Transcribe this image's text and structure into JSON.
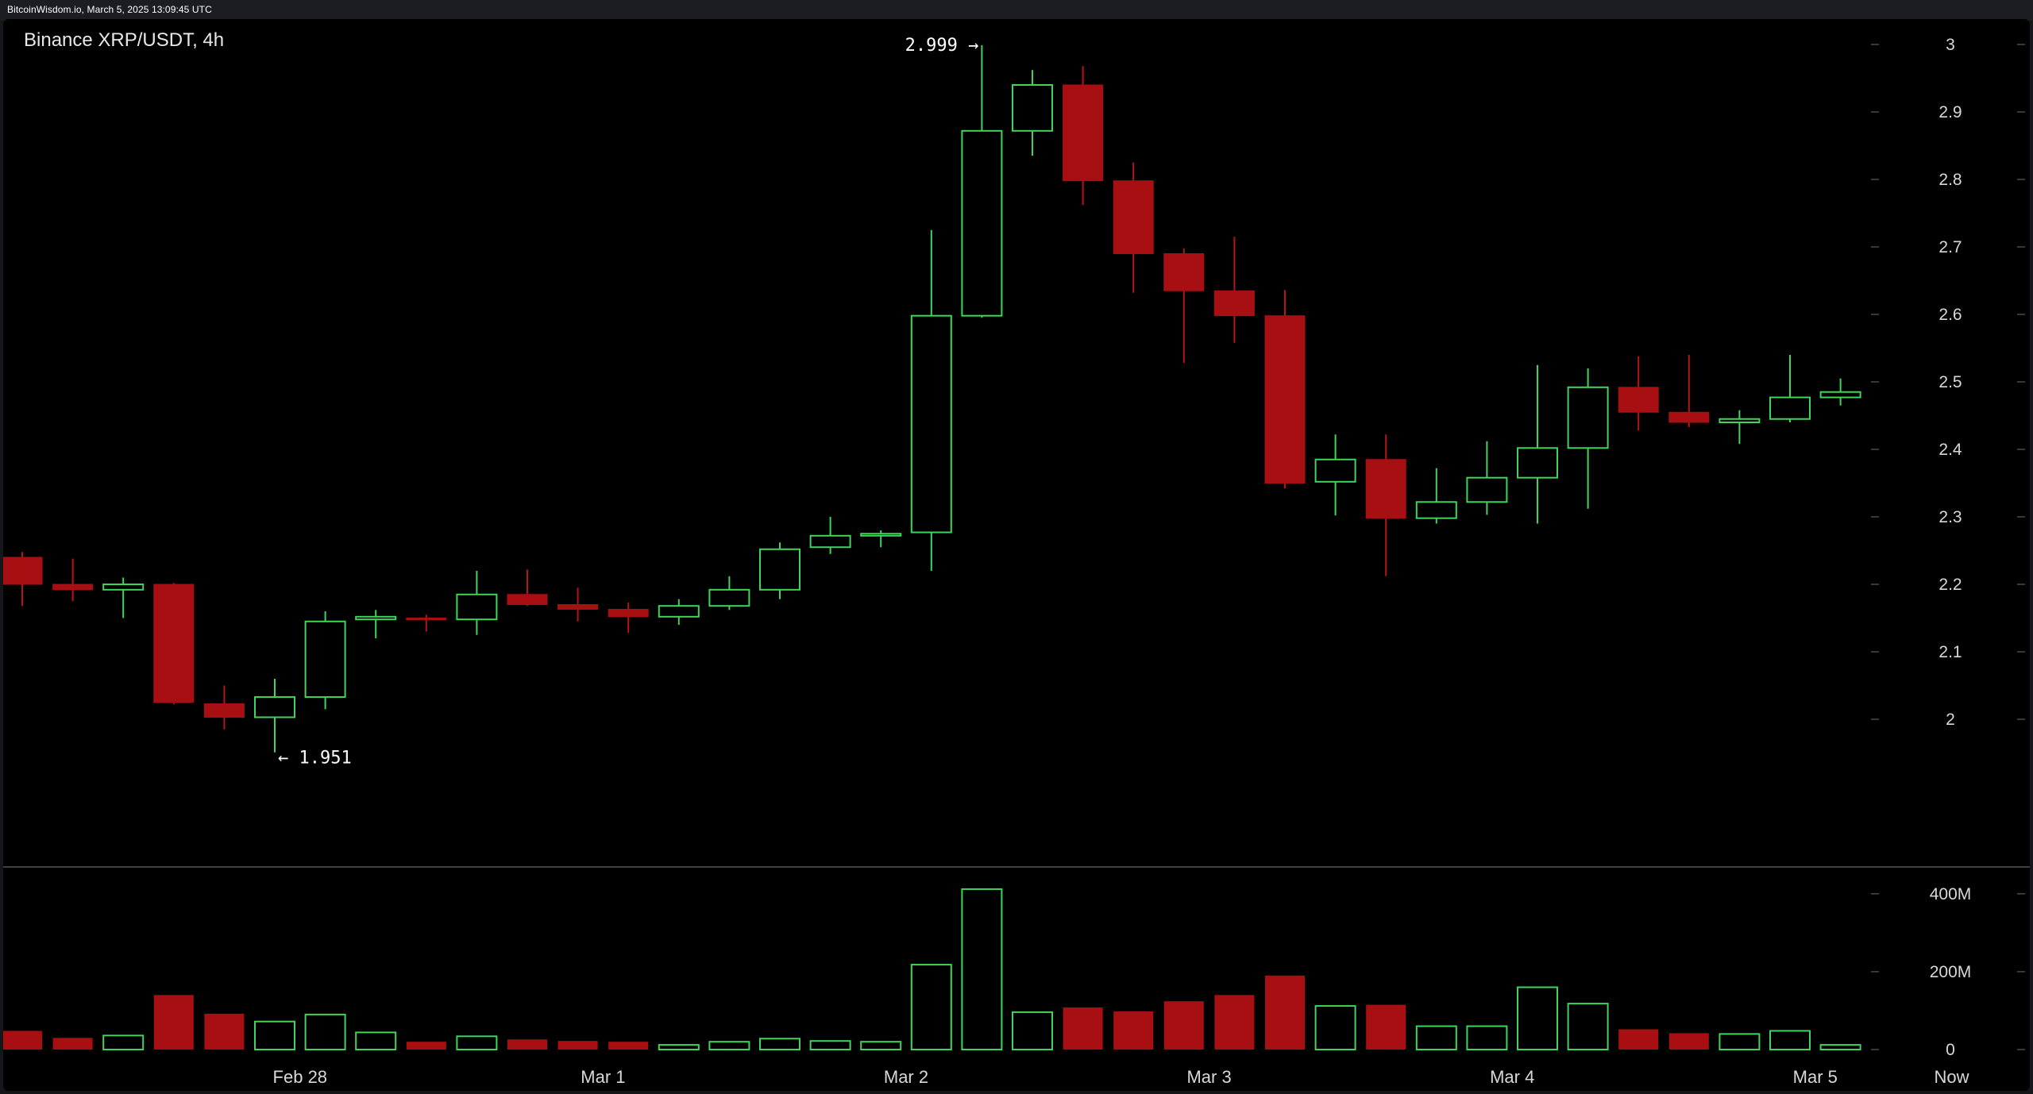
{
  "header": {
    "watermark": "BitcoinWisdom.io, March 5, 2025 13:09:45 UTC"
  },
  "chart_data": {
    "type": "candlestick",
    "title": "Binance XRP/USDT, 4h",
    "interval": "4h",
    "colors": {
      "up": "#3fd45a",
      "down": "#a80f12",
      "background": "#000000",
      "grid": "#4a4a4a"
    },
    "price_axis": {
      "ylim": [
        1.9,
        3.0
      ],
      "ticks": [
        "2",
        "2.1",
        "2.2",
        "2.3",
        "2.4",
        "2.5",
        "2.6",
        "2.7",
        "2.8",
        "2.9",
        "3"
      ]
    },
    "volume_axis": {
      "ylim": [
        0,
        420
      ],
      "unit": "M",
      "ticks": [
        "0",
        "200M",
        "400M"
      ]
    },
    "x_ticks": [
      {
        "label": "Feb 28",
        "index": 5.5
      },
      {
        "label": "Mar 1",
        "index": 11.5
      },
      {
        "label": "Mar 2",
        "index": 17.5
      },
      {
        "label": "Mar 3",
        "index": 23.5
      },
      {
        "label": "Mar 4",
        "index": 29.5
      },
      {
        "label": "Mar 5",
        "index": 35.5
      },
      {
        "label": "Now",
        "index": 38.2
      }
    ],
    "annotations": [
      {
        "label": "2.999 →",
        "index": 19,
        "value": 2.999,
        "side": "left"
      },
      {
        "label": "← 1.951",
        "index": 5,
        "value": 1.951,
        "side": "right"
      }
    ],
    "candles": [
      {
        "o": 2.24,
        "h": 2.248,
        "l": 2.168,
        "c": 2.2,
        "v": 48
      },
      {
        "o": 2.2,
        "h": 2.238,
        "l": 2.175,
        "c": 2.192,
        "v": 30
      },
      {
        "o": 2.192,
        "h": 2.21,
        "l": 2.15,
        "c": 2.2,
        "v": 36
      },
      {
        "o": 2.2,
        "h": 2.202,
        "l": 2.022,
        "c": 2.025,
        "v": 140
      },
      {
        "o": 2.023,
        "h": 2.05,
        "l": 1.985,
        "c": 2.003,
        "v": 92
      },
      {
        "o": 2.003,
        "h": 2.06,
        "l": 1.951,
        "c": 2.033,
        "v": 72
      },
      {
        "o": 2.033,
        "h": 2.16,
        "l": 2.015,
        "c": 2.145,
        "v": 90
      },
      {
        "o": 2.148,
        "h": 2.162,
        "l": 2.12,
        "c": 2.152,
        "v": 44
      },
      {
        "o": 2.15,
        "h": 2.155,
        "l": 2.13,
        "c": 2.148,
        "v": 20
      },
      {
        "o": 2.148,
        "h": 2.22,
        "l": 2.125,
        "c": 2.185,
        "v": 34
      },
      {
        "o": 2.185,
        "h": 2.222,
        "l": 2.168,
        "c": 2.17,
        "v": 26
      },
      {
        "o": 2.17,
        "h": 2.195,
        "l": 2.145,
        "c": 2.163,
        "v": 22
      },
      {
        "o": 2.163,
        "h": 2.173,
        "l": 2.128,
        "c": 2.152,
        "v": 20
      },
      {
        "o": 2.152,
        "h": 2.178,
        "l": 2.14,
        "c": 2.168,
        "v": 12
      },
      {
        "o": 2.168,
        "h": 2.212,
        "l": 2.162,
        "c": 2.192,
        "v": 20
      },
      {
        "o": 2.192,
        "h": 2.262,
        "l": 2.178,
        "c": 2.252,
        "v": 28
      },
      {
        "o": 2.255,
        "h": 2.3,
        "l": 2.245,
        "c": 2.272,
        "v": 22
      },
      {
        "o": 2.272,
        "h": 2.28,
        "l": 2.255,
        "c": 2.275,
        "v": 20
      },
      {
        "o": 2.277,
        "h": 2.725,
        "l": 2.22,
        "c": 2.598,
        "v": 218
      },
      {
        "o": 2.598,
        "h": 2.999,
        "l": 2.595,
        "c": 2.872,
        "v": 412
      },
      {
        "o": 2.872,
        "h": 2.962,
        "l": 2.835,
        "c": 2.94,
        "v": 96
      },
      {
        "o": 2.94,
        "h": 2.968,
        "l": 2.762,
        "c": 2.798,
        "v": 108
      },
      {
        "o": 2.798,
        "h": 2.825,
        "l": 2.632,
        "c": 2.69,
        "v": 98
      },
      {
        "o": 2.69,
        "h": 2.698,
        "l": 2.528,
        "c": 2.635,
        "v": 124
      },
      {
        "o": 2.635,
        "h": 2.715,
        "l": 2.558,
        "c": 2.598,
        "v": 140
      },
      {
        "o": 2.598,
        "h": 2.636,
        "l": 2.342,
        "c": 2.35,
        "v": 190
      },
      {
        "o": 2.352,
        "h": 2.422,
        "l": 2.302,
        "c": 2.385,
        "v": 112
      },
      {
        "o": 2.385,
        "h": 2.422,
        "l": 2.212,
        "c": 2.298,
        "v": 115
      },
      {
        "o": 2.298,
        "h": 2.372,
        "l": 2.29,
        "c": 2.322,
        "v": 60
      },
      {
        "o": 2.322,
        "h": 2.412,
        "l": 2.303,
        "c": 2.358,
        "v": 60
      },
      {
        "o": 2.358,
        "h": 2.525,
        "l": 2.29,
        "c": 2.402,
        "v": 160
      },
      {
        "o": 2.402,
        "h": 2.52,
        "l": 2.312,
        "c": 2.492,
        "v": 118
      },
      {
        "o": 2.492,
        "h": 2.538,
        "l": 2.428,
        "c": 2.455,
        "v": 52
      },
      {
        "o": 2.455,
        "h": 2.54,
        "l": 2.433,
        "c": 2.44,
        "v": 42
      },
      {
        "o": 2.44,
        "h": 2.458,
        "l": 2.408,
        "c": 2.445,
        "v": 40
      },
      {
        "o": 2.445,
        "h": 2.54,
        "l": 2.44,
        "c": 2.477,
        "v": 48
      },
      {
        "o": 2.477,
        "h": 2.505,
        "l": 2.465,
        "c": 2.485,
        "v": 12
      }
    ]
  }
}
